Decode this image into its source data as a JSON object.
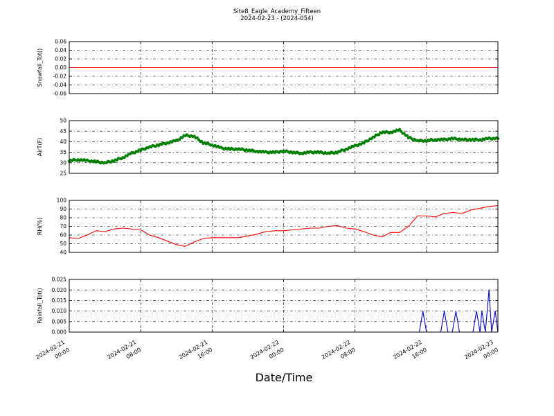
{
  "figure": {
    "title": "Site8_Eagle_Academy_Fifteen",
    "subtitle": "2024-02-23 - (2024-054)",
    "xlabel": "Date/Time"
  },
  "x_ticks": [
    {
      "line1": "2024-02-21",
      "line2": "00:00",
      "hour": 0
    },
    {
      "line1": "2024-02-21",
      "line2": "08:00",
      "hour": 8
    },
    {
      "line1": "2024-02-21",
      "line2": "16:00",
      "hour": 16
    },
    {
      "line1": "2024-02-22",
      "line2": "00:00",
      "hour": 24
    },
    {
      "line1": "2024-02-22",
      "line2": "08:00",
      "hour": 32
    },
    {
      "line1": "2024-02-22",
      "line2": "16:00",
      "hour": 40
    },
    {
      "line1": "2024-02-23",
      "line2": "00:00",
      "hour": 48
    }
  ],
  "chart_data": [
    {
      "type": "line",
      "ylabel": "Snowfall_Tot()",
      "ylim": [
        -0.06,
        0.06
      ],
      "yticks": [
        "-0.06",
        "-0.04",
        "-0.02",
        "0.00",
        "0.02",
        "0.04",
        "0.06"
      ],
      "grid": true,
      "color": "#ff0000",
      "marker": false,
      "series": [
        {
          "x": [
            0,
            48
          ],
          "y": [
            0,
            0
          ]
        }
      ]
    },
    {
      "type": "line",
      "ylabel": "AirT(F)",
      "ylim": [
        25,
        50
      ],
      "yticks": [
        "25",
        "30",
        "35",
        "40",
        "45",
        "50"
      ],
      "grid": true,
      "color": "#007f00",
      "marker": true,
      "series": [
        {
          "x": [
            0,
            1,
            2,
            3,
            4,
            5,
            6,
            7,
            8,
            9,
            10,
            11,
            12,
            13,
            14,
            15,
            16,
            17,
            18,
            19,
            20,
            21,
            22,
            23,
            24,
            25,
            26,
            27,
            28,
            29,
            30,
            31,
            32,
            33,
            34,
            35,
            36,
            37,
            38,
            39,
            40,
            41,
            42,
            43,
            44,
            45,
            46,
            47,
            48
          ],
          "y": [
            31,
            31.5,
            31,
            30.5,
            30,
            31,
            32.5,
            34.5,
            36,
            37.5,
            38.5,
            39.5,
            40.5,
            43,
            42.5,
            39.5,
            38.5,
            37,
            36.5,
            36.5,
            36,
            35.5,
            35,
            35,
            35.5,
            35,
            34.5,
            35,
            35,
            34.5,
            35,
            36.5,
            38,
            39.5,
            42,
            44.5,
            44.5,
            45.5,
            42,
            40.5,
            40.5,
            41,
            41,
            41.5,
            41,
            41,
            41,
            41.5,
            41.5
          ]
        }
      ]
    },
    {
      "type": "line",
      "ylabel": "RH(%)",
      "ylim": [
        40,
        100
      ],
      "yticks": [
        "40",
        "50",
        "60",
        "70",
        "80",
        "90",
        "100"
      ],
      "grid": true,
      "color": "#ff0000",
      "marker": false,
      "series": [
        {
          "x": [
            0,
            1,
            2,
            3,
            4,
            5,
            6,
            7,
            8,
            9,
            10,
            11,
            12,
            13,
            14,
            15,
            16,
            17,
            18,
            19,
            20,
            21,
            22,
            23,
            24,
            25,
            26,
            27,
            28,
            29,
            30,
            31,
            32,
            33,
            34,
            35,
            36,
            37,
            38,
            39,
            40,
            41,
            42,
            43,
            44,
            45,
            46,
            47,
            48
          ],
          "y": [
            57,
            56,
            60,
            65,
            64,
            67,
            68,
            67,
            66,
            60,
            57,
            53,
            49,
            47,
            52,
            56,
            57,
            57,
            57,
            57,
            59,
            61,
            64,
            65,
            65,
            66,
            67,
            68,
            68,
            70,
            71,
            68,
            67,
            64,
            60,
            58,
            63,
            63,
            70,
            82,
            82,
            81,
            85,
            86,
            85,
            89,
            91,
            93,
            94
          ]
        }
      ]
    },
    {
      "type": "line",
      "ylabel": "Rainfall_Tot()",
      "ylim": [
        0,
        0.025
      ],
      "yticks": [
        "0.000",
        "0.005",
        "0.010",
        "0.015",
        "0.020",
        "0.025"
      ],
      "grid": true,
      "color": "#0000cc",
      "marker": false,
      "series": [
        {
          "x": [
            0,
            39.2,
            39.6,
            40.0,
            41.6,
            42.0,
            42.4,
            42.9,
            43.3,
            43.7,
            45.2,
            45.6,
            46.0,
            46.2,
            46.6,
            47.0,
            47.3,
            47.7,
            48.0
          ],
          "y": [
            0,
            0,
            0.01,
            0,
            0,
            0.01,
            0,
            0,
            0.01,
            0,
            0,
            0.01,
            0,
            0.01,
            0,
            0.02,
            0,
            0.01,
            0
          ]
        }
      ]
    }
  ]
}
